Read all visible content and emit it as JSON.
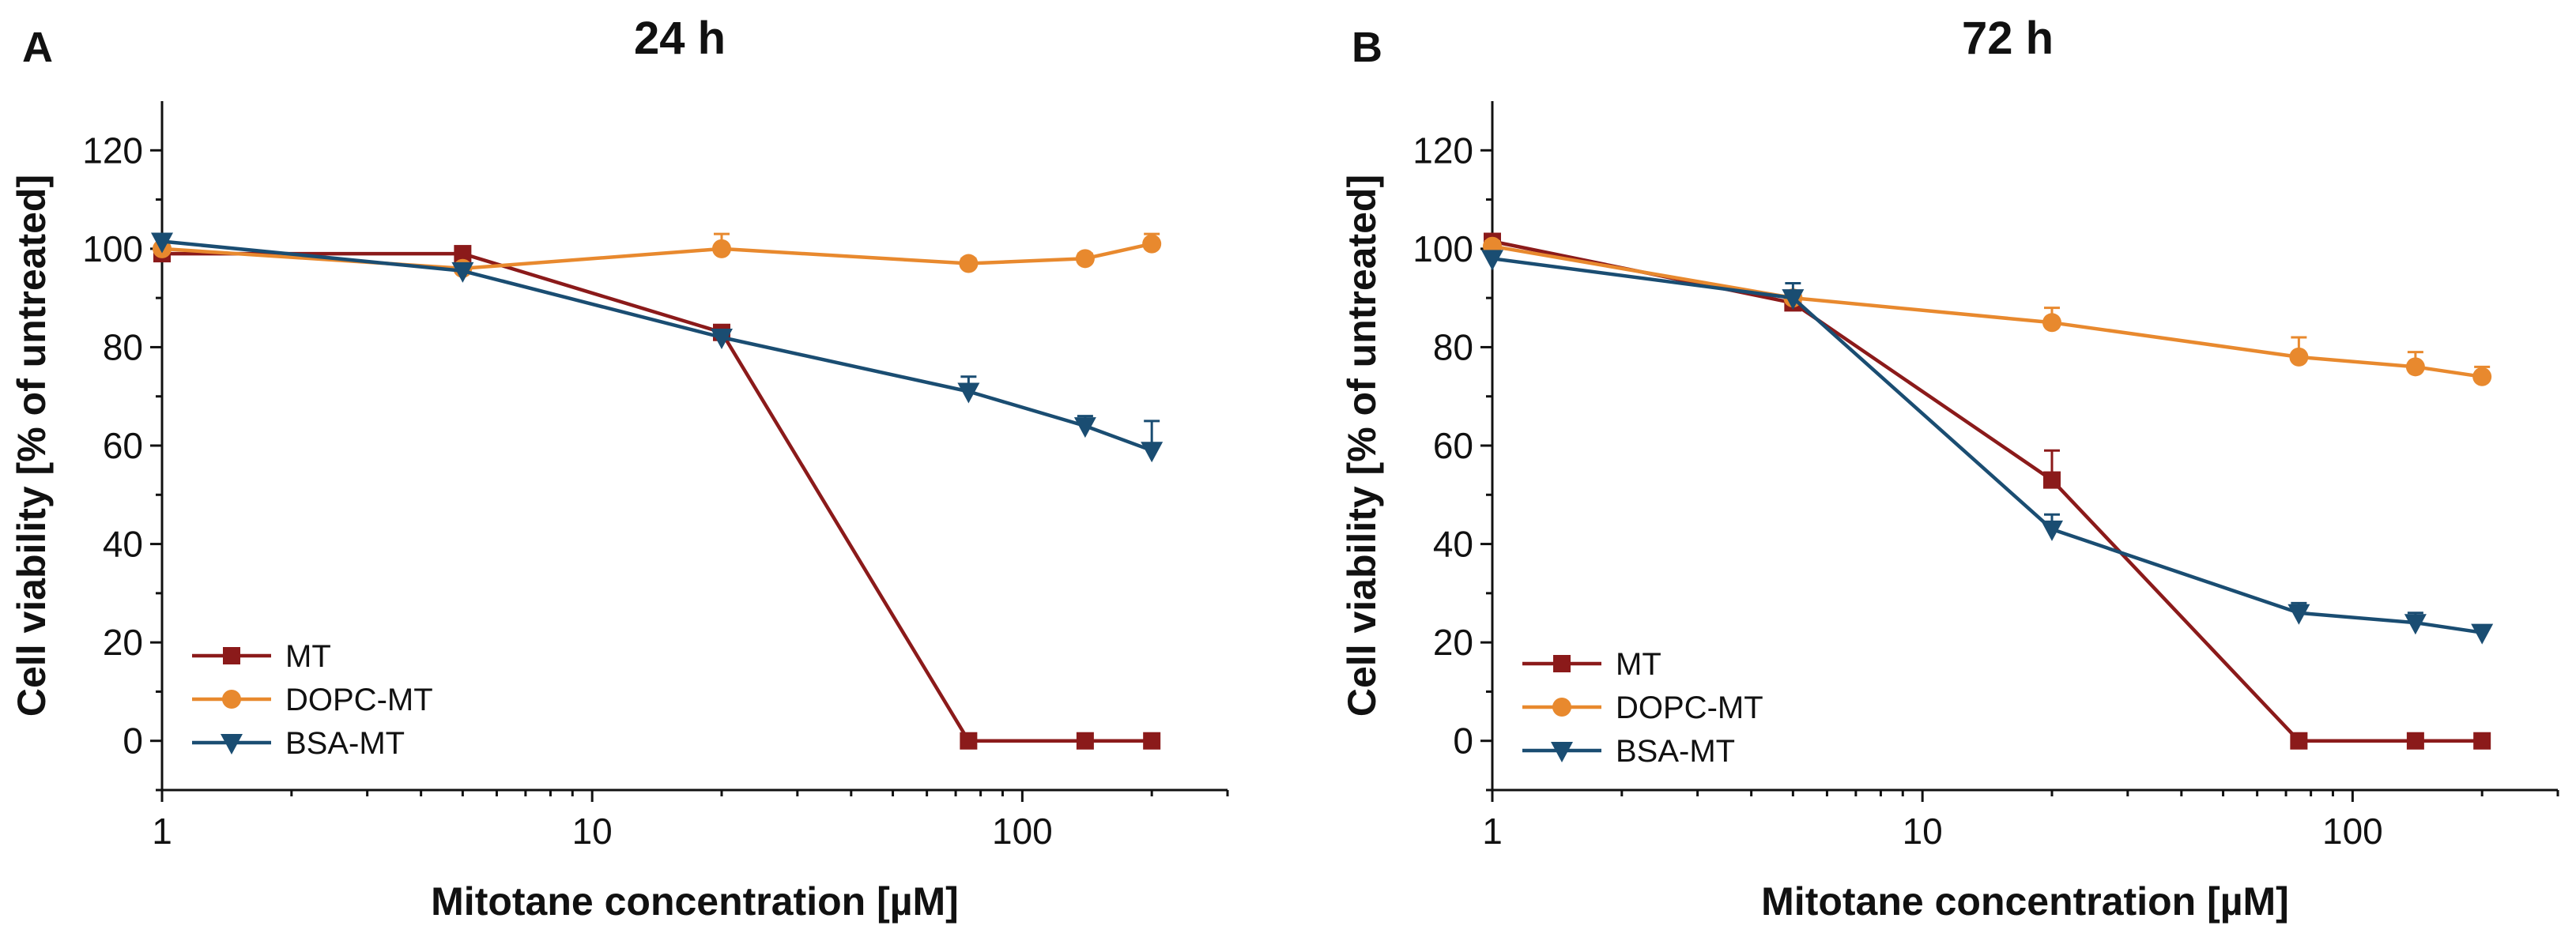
{
  "chart_data": [
    {
      "panel": "A",
      "type": "line",
      "title": "24 h",
      "xlabel": "Mitotane concentration [µM]",
      "ylabel": "Cell viability [% of untreated]",
      "xscale": "log",
      "xlim": [
        1,
        300
      ],
      "ylim": [
        -10,
        130
      ],
      "x_ticks": [
        1,
        10,
        100
      ],
      "x_tick_labels": [
        "1",
        "10",
        "100"
      ],
      "y_ticks": [
        0,
        20,
        40,
        60,
        80,
        100,
        120
      ],
      "y_tick_labels": [
        "0",
        "20",
        "40",
        "60",
        "80",
        "100",
        "120"
      ],
      "legend_position": "bottom-left",
      "series": [
        {
          "name": "MT",
          "color": "#8b1a1a",
          "marker": "square",
          "x": [
            1,
            5,
            20,
            75,
            140,
            200
          ],
          "y": [
            99,
            99,
            83,
            0,
            0,
            0
          ],
          "error": [
            0,
            1,
            1,
            0,
            0,
            0
          ]
        },
        {
          "name": "DOPC-MT",
          "color": "#e8892e",
          "marker": "circle",
          "x": [
            1,
            5,
            20,
            75,
            140,
            200
          ],
          "y": [
            100,
            96,
            100,
            97,
            98,
            101
          ],
          "error": [
            0,
            0,
            3,
            1,
            1,
            2
          ]
        },
        {
          "name": "BSA-MT",
          "color": "#1a4d72",
          "marker": "triangle-down",
          "x": [
            1,
            5,
            20,
            75,
            140,
            200
          ],
          "y": [
            101.5,
            95.5,
            82,
            71,
            64,
            59
          ],
          "error": [
            1,
            1,
            1,
            3,
            2,
            6
          ]
        }
      ]
    },
    {
      "panel": "B",
      "type": "line",
      "title": "72 h",
      "xlabel": "Mitotane concentration [µM]",
      "ylabel": "Cell viability [% of untreated]",
      "xscale": "log",
      "xlim": [
        1,
        300
      ],
      "ylim": [
        -10,
        130
      ],
      "x_ticks": [
        1,
        10,
        100
      ],
      "x_tick_labels": [
        "1",
        "10",
        "100"
      ],
      "y_ticks": [
        0,
        20,
        40,
        60,
        80,
        100,
        120
      ],
      "y_tick_labels": [
        "0",
        "20",
        "40",
        "60",
        "80",
        "100",
        "120"
      ],
      "legend_position": "bottom-left",
      "series": [
        {
          "name": "MT",
          "color": "#8b1a1a",
          "marker": "square",
          "x": [
            1,
            5,
            20,
            75,
            140,
            200
          ],
          "y": [
            101.5,
            89,
            53,
            0,
            0,
            0
          ],
          "error": [
            1,
            1,
            6,
            0,
            0,
            0
          ]
        },
        {
          "name": "DOPC-MT",
          "color": "#e8892e",
          "marker": "circle",
          "x": [
            1,
            5,
            20,
            75,
            140,
            200
          ],
          "y": [
            100.5,
            90,
            85,
            78,
            76,
            74
          ],
          "error": [
            1,
            1,
            3,
            4,
            3,
            2
          ]
        },
        {
          "name": "BSA-MT",
          "color": "#1a4d72",
          "marker": "triangle-down",
          "x": [
            1,
            5,
            20,
            75,
            140,
            200
          ],
          "y": [
            98,
            90,
            43,
            26,
            24,
            22
          ],
          "error": [
            1,
            3,
            3,
            2,
            2,
            1
          ]
        }
      ]
    }
  ]
}
